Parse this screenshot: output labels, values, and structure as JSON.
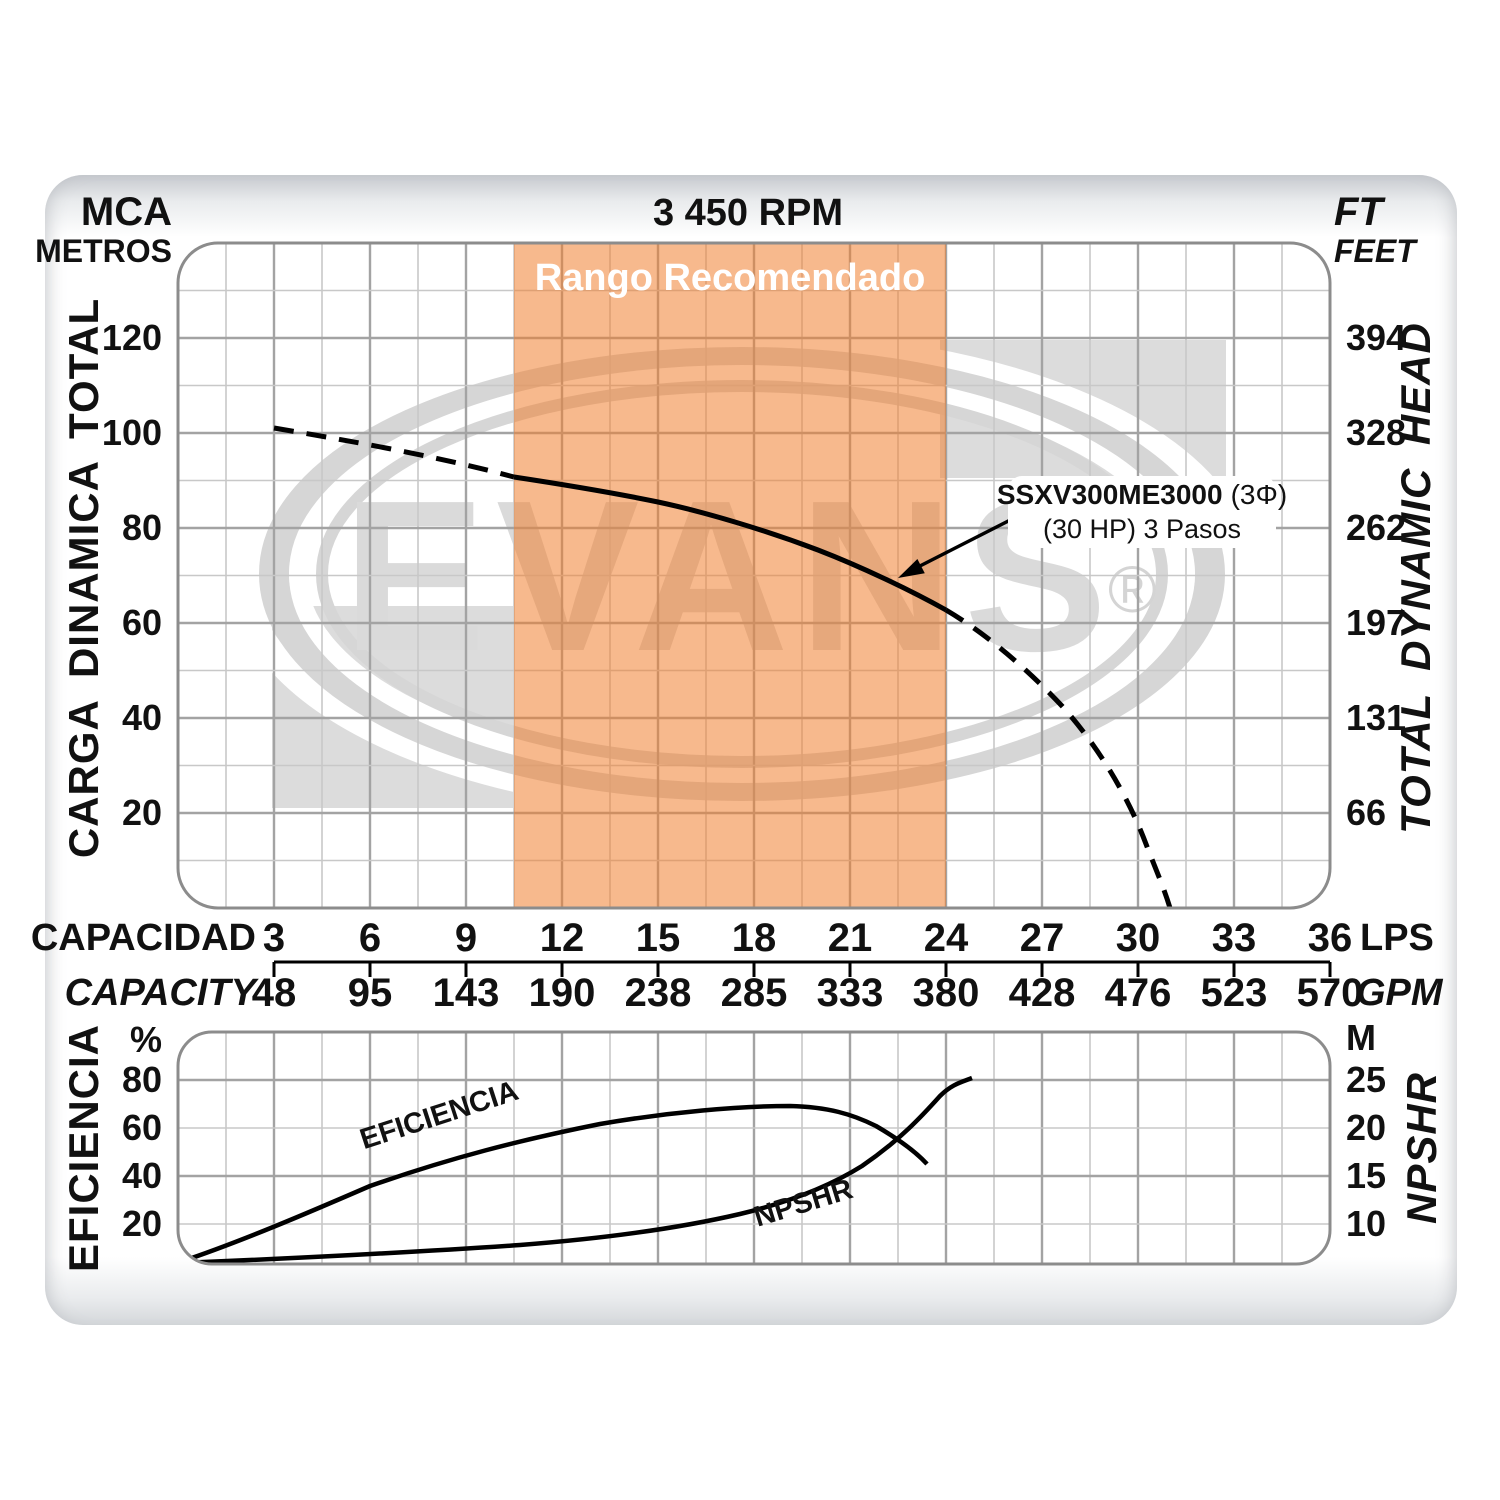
{
  "header": {
    "rpm": "3 450 RPM",
    "unit_left_line1": "MCA",
    "unit_left_line2": "METROS",
    "unit_right_line1": "FT",
    "unit_right_line2": "FEET"
  },
  "upper_chart": {
    "axis_left_title": "CARGA DINAMICA TOTAL",
    "axis_right_title": "TOTAL DYNAMIC HEAD",
    "recommended_range_label": "Rango Recomendado",
    "y_left_ticks": [
      "120",
      "100",
      "80",
      "60",
      "40",
      "20"
    ],
    "y_right_ticks": [
      "394",
      "328",
      "262",
      "197",
      "131",
      "66"
    ],
    "curve_label_model": "SSXV300ME3000",
    "curve_label_phase": "(3Φ)",
    "curve_label_line2": "(30 HP) 3 Pasos"
  },
  "x_axis": {
    "label_row1": "CAPACIDAD",
    "label_row2": "CAPACITY",
    "unit_row1": "LPS",
    "unit_row2": "GPM",
    "row1_ticks": [
      "3",
      "6",
      "9",
      "12",
      "15",
      "18",
      "21",
      "24",
      "27",
      "30",
      "33",
      "36"
    ],
    "row2_ticks": [
      "48",
      "95",
      "143",
      "190",
      "238",
      "285",
      "333",
      "380",
      "428",
      "476",
      "523",
      "570"
    ]
  },
  "lower_chart": {
    "axis_left_title": "EFICIENCIA",
    "axis_right_title": "NPSHR",
    "unit_left": "%",
    "unit_right": "M",
    "y_left_ticks": [
      "80",
      "60",
      "40",
      "20"
    ],
    "y_right_ticks": [
      "25",
      "20",
      "15",
      "10"
    ],
    "efficiency_curve_label": "EFICIENCIA",
    "npshr_curve_label": "NPSHR"
  },
  "watermark": {
    "brand": "EVANS",
    "registered": "®"
  },
  "colors": {
    "recommended_range_apparent": "#F7B98D",
    "watermark_gray": "#D8D8D8",
    "curve": "#000000",
    "grid_minor": "#C8C8C8",
    "grid_major": "#A3A3A3"
  },
  "chart_data": [
    {
      "type": "line",
      "title": "3 450 RPM",
      "name": "pump head curve",
      "series": [
        {
          "name": "SSXV300ME3000 (3Φ) (30 HP) 3 Pasos",
          "x_lps": [
            3,
            6,
            9,
            10.5,
            12,
            15,
            18,
            21,
            24,
            25,
            26,
            27,
            28,
            29,
            30,
            31
          ],
          "head_mca": [
            100,
            95.5,
            91.5,
            89.5,
            88,
            84,
            79,
            72.5,
            62,
            58,
            53,
            47,
            40,
            31,
            20,
            0
          ],
          "line_style": "dashed outside recommended range, solid inside 10.5-24 LPS"
        }
      ],
      "xlabel": "CAPACIDAD (LPS) / CAPACITY (GPM)",
      "ylabel_left": "CARGA DINAMICA TOTAL (MCA / METROS)",
      "ylabel_right": "TOTAL DYNAMIC HEAD (FT / FEET)",
      "x_ticks_lps": [
        3,
        6,
        9,
        12,
        15,
        18,
        21,
        24,
        27,
        30,
        33,
        36
      ],
      "x_ticks_gpm": [
        48,
        95,
        143,
        190,
        238,
        285,
        333,
        380,
        428,
        476,
        523,
        570
      ],
      "y_ticks_mca": [
        20,
        40,
        60,
        80,
        100,
        120
      ],
      "y_ticks_ft": [
        66,
        131,
        197,
        262,
        328,
        394
      ],
      "ylim_mca": [
        0,
        140
      ],
      "xlim_lps": [
        0,
        36
      ],
      "recommended_range_lps": [
        10.5,
        24
      ],
      "grid": true,
      "legend_position": "annotation with arrow on curve"
    },
    {
      "type": "line",
      "name": "efficiency curve",
      "series": [
        {
          "name": "EFICIENCIA",
          "x_lps": [
            0.1,
            3,
            6,
            9,
            12,
            15,
            17,
            19,
            21,
            22.5,
            23.4
          ],
          "efficiency_pct": [
            2,
            18,
            34,
            46,
            56,
            63,
            65.5,
            66,
            63,
            55,
            45
          ]
        }
      ],
      "ylabel_left": "EFICIENCIA (%)",
      "y_ticks_pct": [
        20,
        40,
        60,
        80
      ],
      "grid": true
    },
    {
      "type": "line",
      "name": "NPSHR curve",
      "series": [
        {
          "name": "NPSHR",
          "x_lps": [
            0.1,
            6,
            9,
            12,
            15,
            17,
            19,
            21,
            22.5,
            23.5,
            24.5,
            24.8
          ],
          "npshr_m": [
            5.9,
            6.7,
            7.3,
            8.1,
            9.4,
            10.6,
            12.5,
            15.4,
            18.8,
            21.9,
            24.2,
            25.2
          ]
        }
      ],
      "ylabel_right": "NPSHR (M)",
      "y_ticks_m": [
        10,
        15,
        20,
        25
      ],
      "grid": true
    }
  ]
}
